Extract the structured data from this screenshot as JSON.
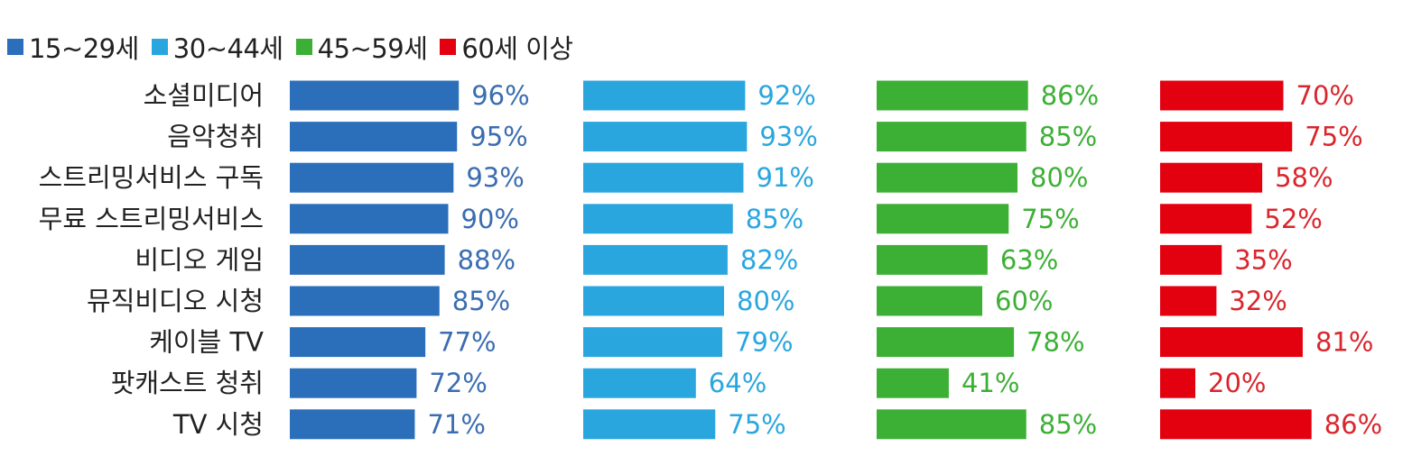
{
  "colors": {
    "series": [
      "#2b6fba",
      "#2aa6df",
      "#3cb035",
      "#e3000f"
    ],
    "labels": [
      "#3a6db0",
      "#2aa6df",
      "#3cb035",
      "#d9262d"
    ]
  },
  "chart_data": {
    "type": "bar",
    "orientation": "horizontal",
    "layout": "small-multiples",
    "legend": "top-left",
    "grid": false,
    "categories": [
      "소셜미디어",
      "음악청취",
      "스트리밍서비스 구독",
      "무료 스트리밍서비스",
      "비디오 게임",
      "뮤직비디오 시청",
      "케이블 TV",
      "팟캐스트 청취",
      "TV 시청"
    ],
    "series": [
      {
        "name": "15~29세",
        "values": [
          96,
          95,
          93,
          90,
          88,
          85,
          77,
          72,
          71
        ],
        "labels": [
          "96%",
          "95%",
          "93%",
          "90%",
          "88%",
          "85%",
          "77%",
          "72%",
          "71%"
        ]
      },
      {
        "name": "30~44세",
        "values": [
          92,
          93,
          91,
          85,
          82,
          80,
          79,
          64,
          75
        ],
        "labels": [
          "92%",
          "93%",
          "91%",
          "85%",
          "82%",
          "80%",
          "79%",
          "64%",
          "75%"
        ]
      },
      {
        "name": "45~59세",
        "values": [
          86,
          85,
          80,
          75,
          63,
          60,
          78,
          41,
          85
        ],
        "labels": [
          "86%",
          "85%",
          "80%",
          "75%",
          "63%",
          "60%",
          "78%",
          "41%",
          "85%"
        ]
      },
      {
        "name": "60세 이상",
        "values": [
          70,
          75,
          58,
          52,
          35,
          32,
          81,
          20,
          86
        ],
        "labels": [
          "70%",
          "75%",
          "58%",
          "52%",
          "35%",
          "32%",
          "81%",
          "20%",
          "86%"
        ]
      }
    ],
    "unit": "%",
    "xlim": [
      0,
      100
    ]
  }
}
